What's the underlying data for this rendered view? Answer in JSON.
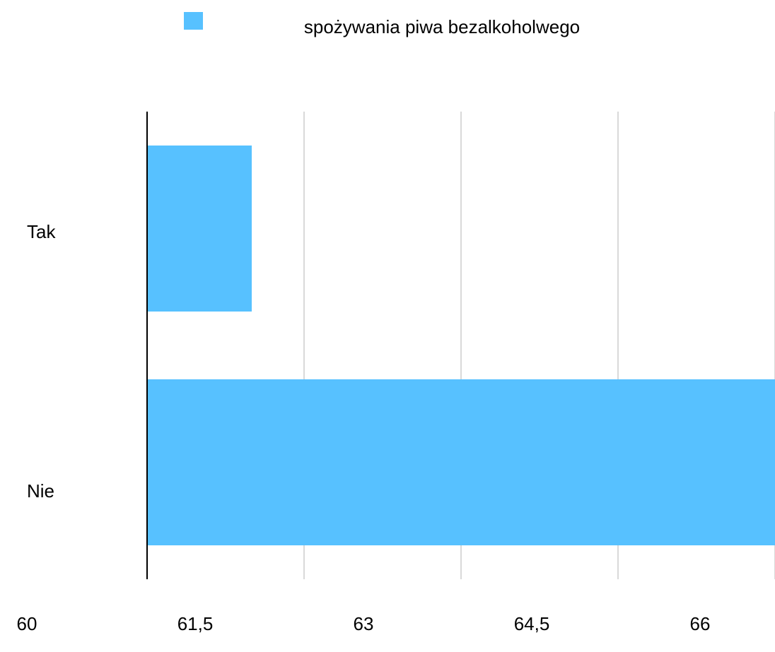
{
  "chart_data": {
    "type": "bar",
    "orientation": "horizontal",
    "categories": [
      "Tak",
      "Nie"
    ],
    "series": [
      {
        "name": "spożywania piwa bezalkoholwego",
        "color": "#57c1ff",
        "values": [
          61,
          66
        ]
      }
    ],
    "xlim": [
      60,
      66
    ],
    "xticks": [
      60,
      {
        "value": 61.5,
        "label": "61,5"
      },
      63,
      {
        "value": 64.5,
        "label": "64,5"
      },
      66
    ],
    "grid": true,
    "legend": "top"
  }
}
